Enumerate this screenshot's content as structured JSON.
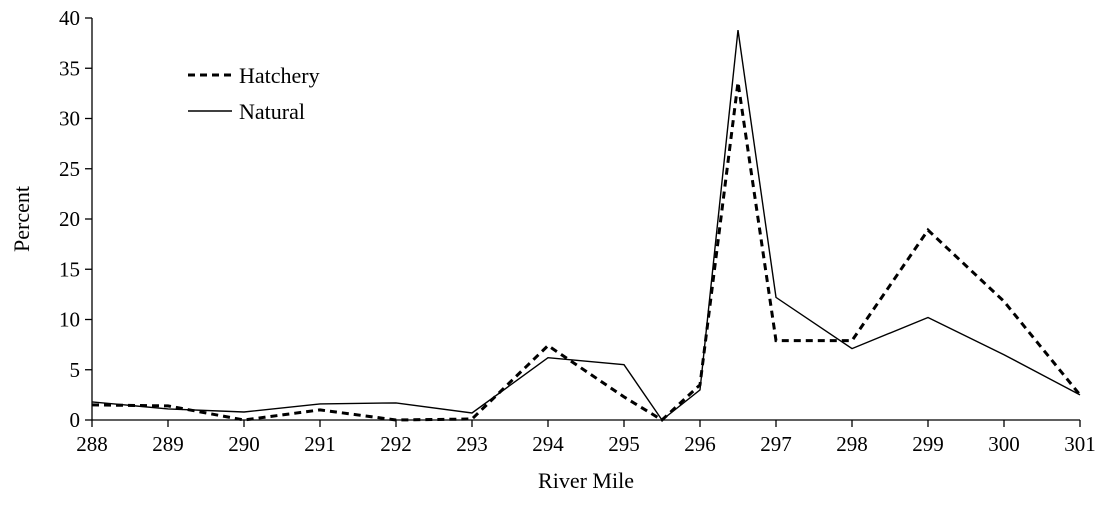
{
  "chart_data": {
    "type": "line",
    "title": "",
    "xlabel": "River Mile",
    "ylabel": "Percent",
    "xlim": [
      288,
      301
    ],
    "ylim": [
      0,
      40
    ],
    "x_ticks": [
      "288",
      "289",
      "290",
      "291",
      "292",
      "293",
      "294",
      "295",
      "296",
      "297",
      "298",
      "299",
      "300",
      "301"
    ],
    "y_ticks": [
      "0",
      "5",
      "10",
      "15",
      "20",
      "25",
      "30",
      "35",
      "40"
    ],
    "grid": false,
    "legend_position": "top-left",
    "series": [
      {
        "name": "Hatchery",
        "style": "dashed",
        "points": [
          [
            288,
            1.5
          ],
          [
            289,
            1.4
          ],
          [
            290,
            0.0
          ],
          [
            291,
            1.0
          ],
          [
            292,
            0.0
          ],
          [
            293,
            0.1
          ],
          [
            294,
            7.4
          ],
          [
            295,
            2.3
          ],
          [
            295.5,
            0.0
          ],
          [
            296,
            3.5
          ],
          [
            296.5,
            33.6
          ],
          [
            297,
            7.9
          ],
          [
            298,
            7.9
          ],
          [
            299,
            18.9
          ],
          [
            300,
            11.8
          ],
          [
            301,
            2.5
          ]
        ]
      },
      {
        "name": "Natural",
        "style": "solid",
        "points": [
          [
            288,
            1.8
          ],
          [
            289,
            1.1
          ],
          [
            290,
            0.8
          ],
          [
            291,
            1.6
          ],
          [
            292,
            1.7
          ],
          [
            293,
            0.7
          ],
          [
            294,
            6.2
          ],
          [
            295,
            5.5
          ],
          [
            295.5,
            0.0
          ],
          [
            296,
            3.0
          ],
          [
            296.5,
            38.8
          ],
          [
            297,
            12.2
          ],
          [
            298,
            7.1
          ],
          [
            299,
            10.2
          ],
          [
            300,
            6.5
          ],
          [
            301,
            2.5
          ]
        ]
      }
    ]
  }
}
